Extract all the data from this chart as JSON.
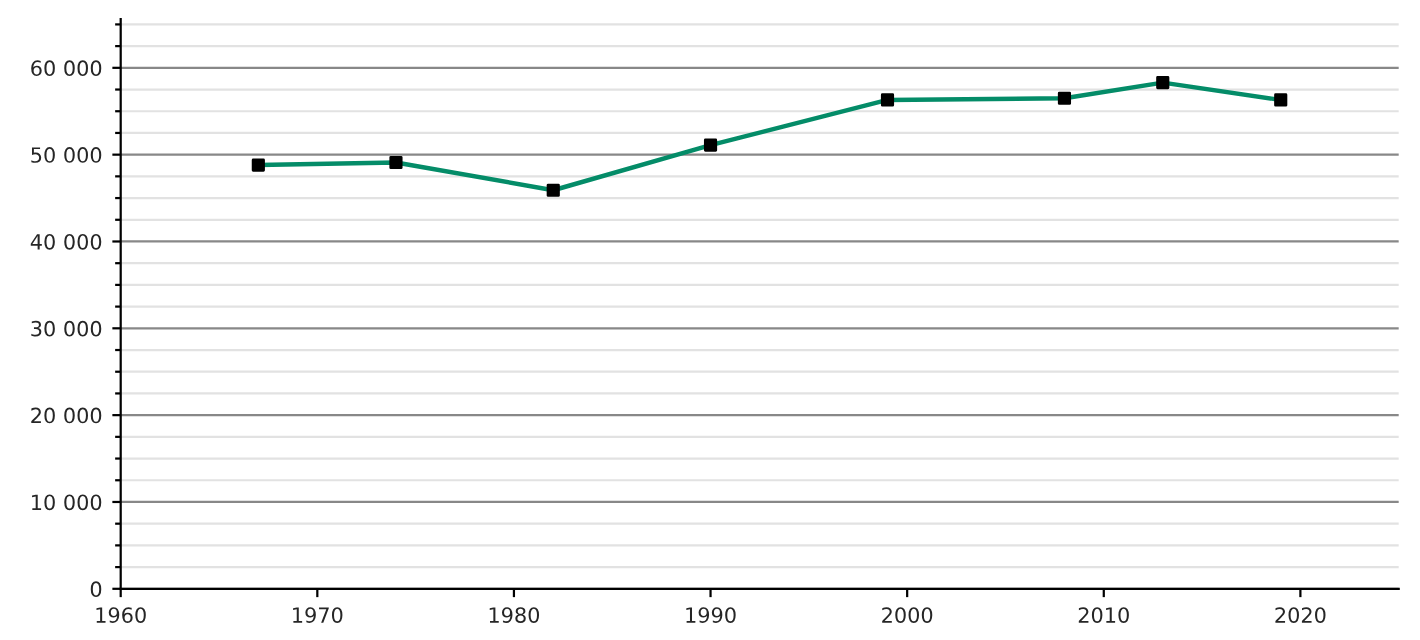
{
  "chart_data": {
    "type": "line",
    "x": [
      1967,
      1974,
      1982,
      1990,
      1999,
      2008,
      2013,
      2019
    ],
    "series": [
      {
        "color": "#048c68",
        "values": [
          48800,
          49100,
          45900,
          51100,
          56300,
          56500,
          58300,
          56300
        ]
      }
    ],
    "xlim": [
      1960,
      2025
    ],
    "xticks": [
      1960,
      1970,
      1980,
      1990,
      2000,
      2010,
      2020
    ],
    "ylim": [
      0,
      65600
    ],
    "yticks": [
      0,
      {
        "value": 2500,
        "label": null
      },
      {
        "value": 5000,
        "label": null
      },
      {
        "value": 7500,
        "label": null
      },
      {
        "value": 10000,
        "label": "10 000"
      },
      {
        "value": 12500,
        "label": null
      },
      {
        "value": 15000,
        "label": null
      },
      {
        "value": 17500,
        "label": null
      },
      {
        "value": 20000,
        "label": "20 000"
      },
      {
        "value": 22500,
        "label": null
      },
      {
        "value": 25000,
        "label": null
      },
      {
        "value": 27500,
        "label": null
      },
      {
        "value": 30000,
        "label": "30 000"
      },
      {
        "value": 32500,
        "label": null
      },
      {
        "value": 35000,
        "label": null
      },
      {
        "value": 37500,
        "label": null
      },
      {
        "value": 40000,
        "label": "40 000"
      },
      {
        "value": 42500,
        "label": null
      },
      {
        "value": 45000,
        "label": null
      },
      {
        "value": 47500,
        "label": null
      },
      {
        "value": 50000,
        "label": "50 000"
      },
      {
        "value": 52500,
        "label": null
      },
      {
        "value": 55000,
        "label": null
      },
      {
        "value": 57500,
        "label": null
      },
      {
        "value": 60000,
        "label": "60 000"
      },
      {
        "value": 62500,
        "label": null
      },
      {
        "value": 65000,
        "label": null
      }
    ],
    "grid": "y",
    "marker": "square",
    "line_style": "solid"
  }
}
